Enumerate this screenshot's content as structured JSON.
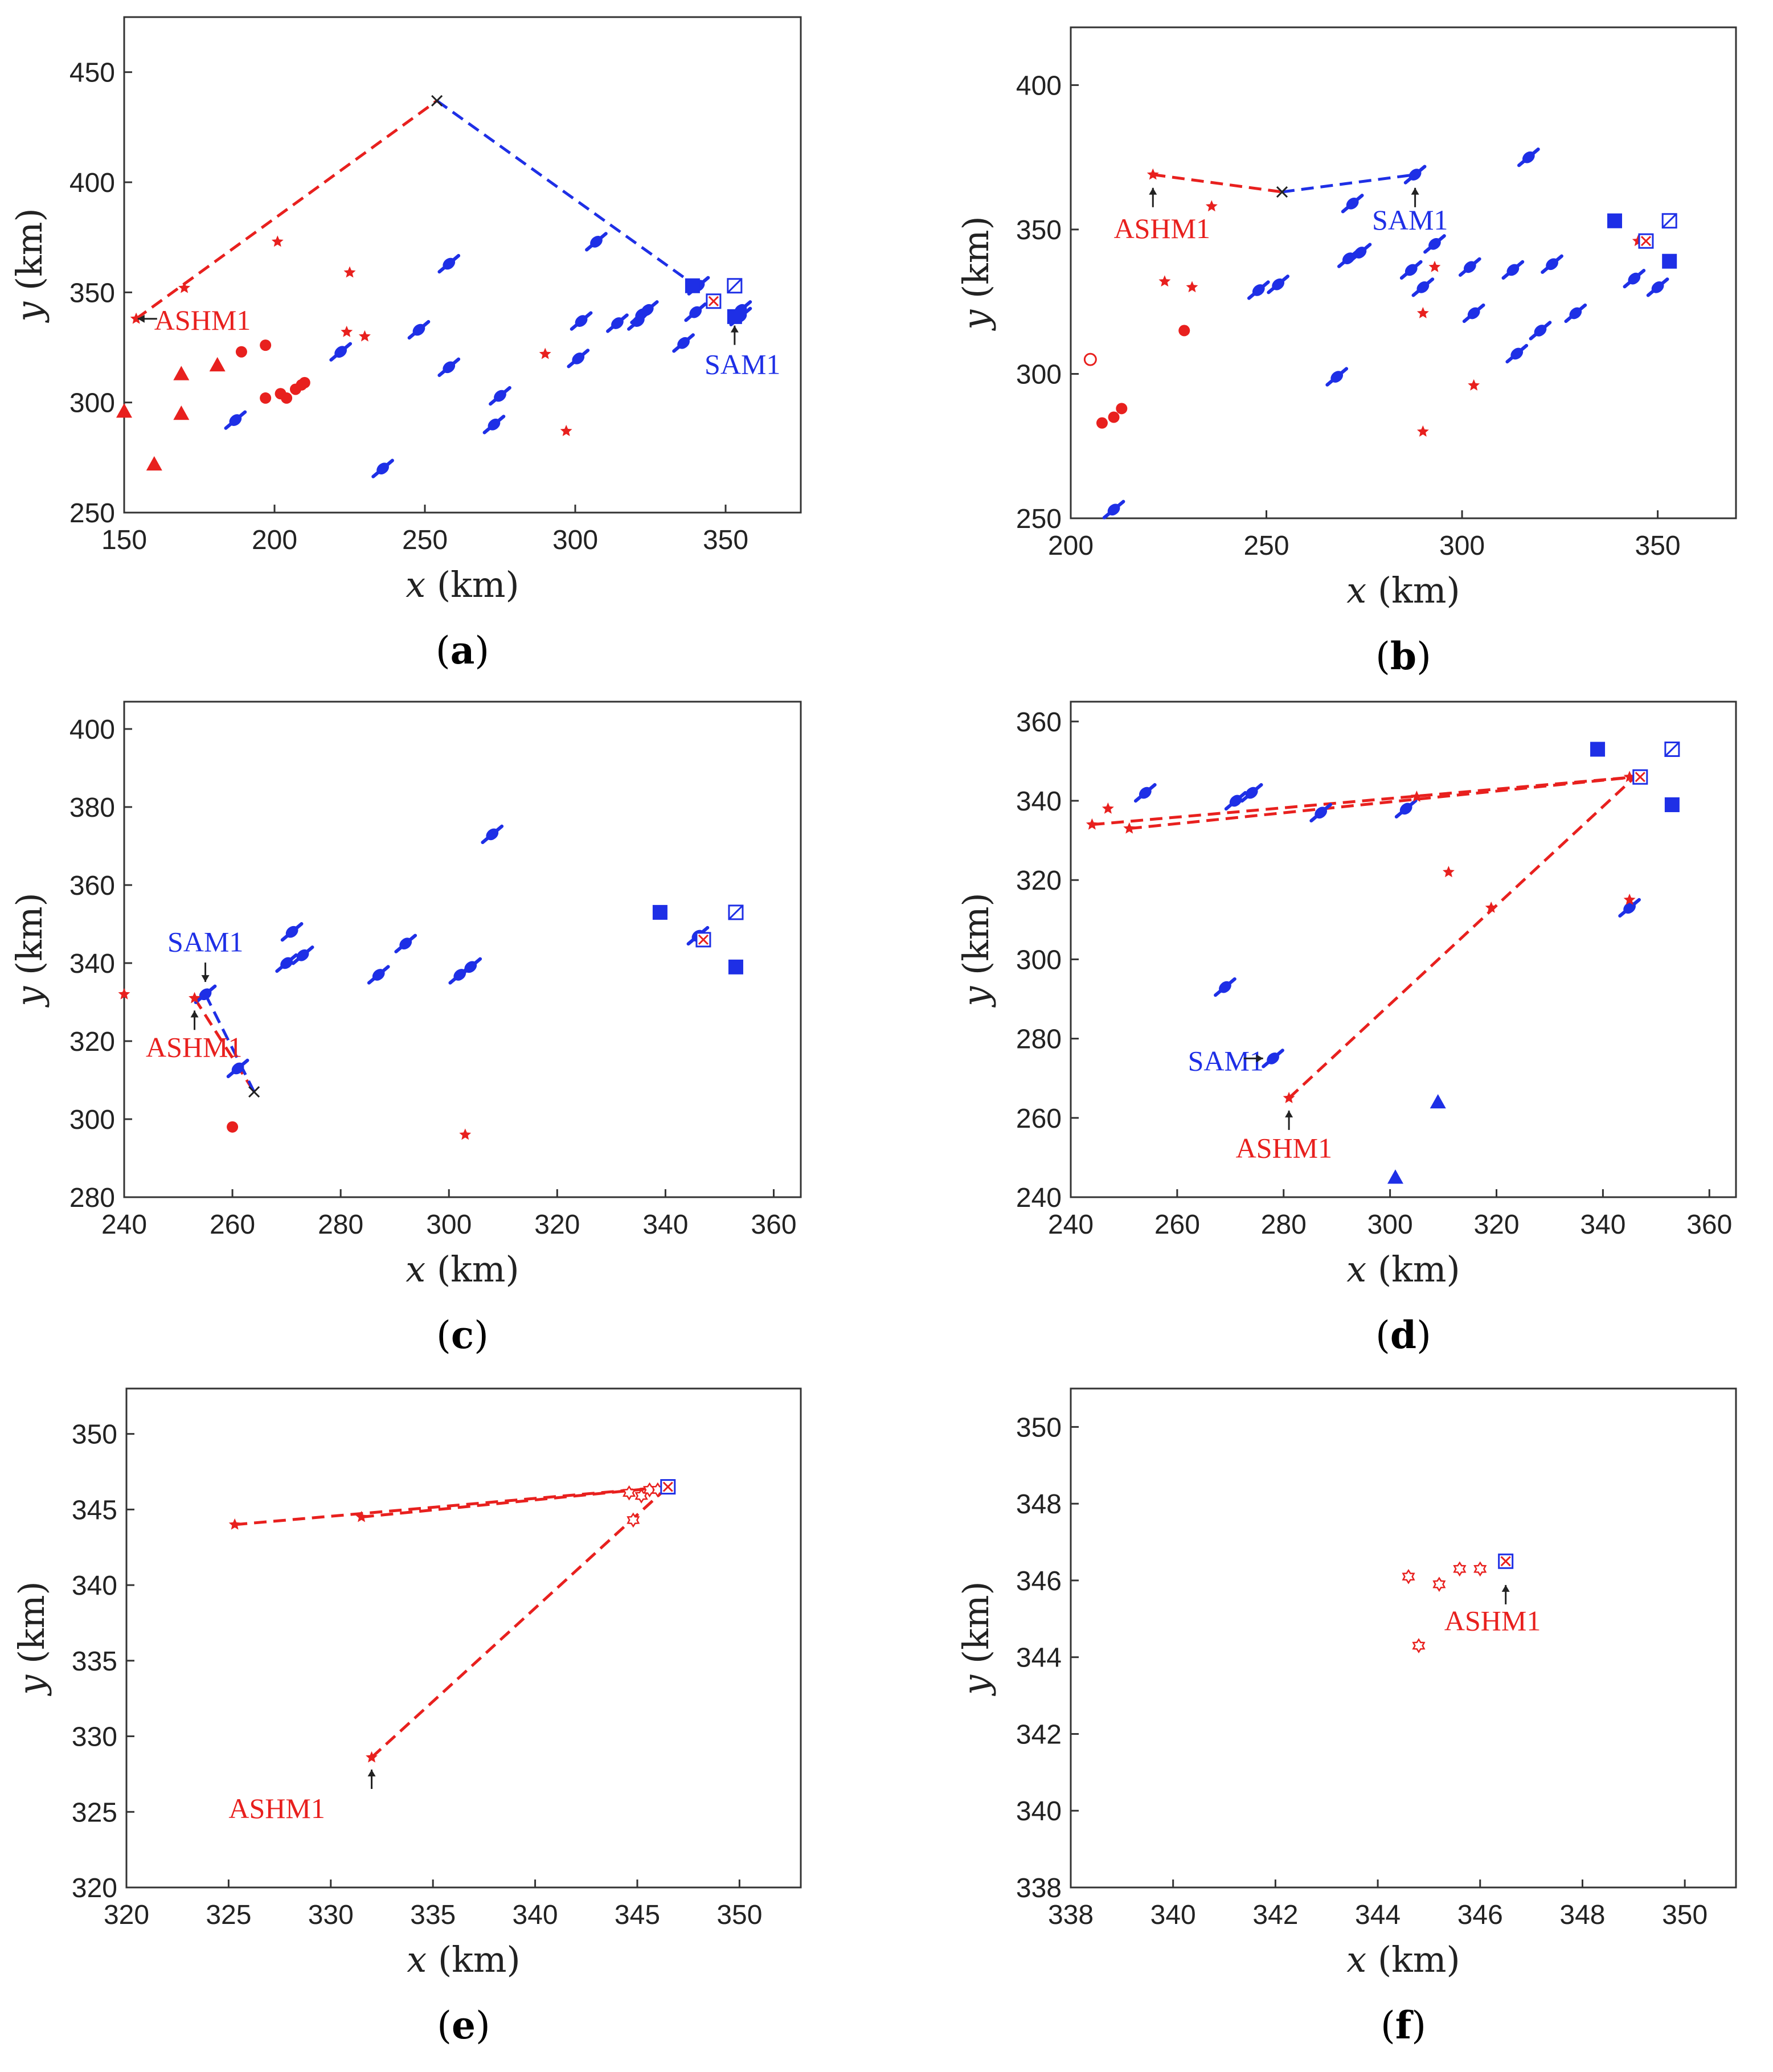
{
  "colors": {
    "red": "#e8201e",
    "blue": "#1e2fe6",
    "black": "#222222"
  },
  "chart_data": [
    {
      "panel": "a",
      "type": "scatter",
      "xlabel": "x",
      "ylabel": "y",
      "unit": "(km)",
      "xlim": [
        150,
        375
      ],
      "ylim": [
        250,
        475
      ],
      "xticks": [
        150,
        200,
        250,
        300,
        350
      ],
      "yticks": [
        250,
        300,
        350,
        400,
        450
      ],
      "lines": [
        {
          "color": "red",
          "pts": [
            [
              154,
              338
            ],
            [
              254,
              437
            ]
          ]
        },
        {
          "color": "blue",
          "pts": [
            [
              254,
              437
            ],
            [
              340,
              353
            ]
          ]
        }
      ],
      "crosses": [
        [
          254,
          437
        ]
      ],
      "red_stars": [
        [
          154,
          338
        ],
        [
          170,
          352
        ],
        [
          201,
          373
        ],
        [
          225,
          359
        ],
        [
          224,
          332
        ],
        [
          230,
          330
        ],
        [
          290,
          322
        ],
        [
          297,
          287
        ]
      ],
      "red_dots": [
        [
          189,
          323
        ],
        [
          197,
          326
        ],
        [
          197,
          302
        ],
        [
          202,
          304
        ],
        [
          204,
          302
        ],
        [
          207,
          306
        ],
        [
          209,
          308
        ],
        [
          210,
          309
        ]
      ],
      "red_triangles": [
        [
          150,
          296
        ],
        [
          160,
          272
        ],
        [
          169,
          295
        ],
        [
          169,
          313
        ],
        [
          181,
          317
        ]
      ],
      "blue_aircraft": [
        [
          187,
          292
        ],
        [
          222,
          323
        ],
        [
          236,
          270
        ],
        [
          248,
          333
        ],
        [
          258,
          316
        ],
        [
          258,
          363
        ],
        [
          273,
          290
        ],
        [
          275,
          303
        ],
        [
          301,
          320
        ],
        [
          302,
          337
        ],
        [
          307,
          373
        ],
        [
          314,
          336
        ],
        [
          321,
          337
        ],
        [
          322,
          340
        ],
        [
          324,
          342
        ],
        [
          336,
          327
        ],
        [
          340,
          341
        ],
        [
          341,
          353
        ],
        [
          355,
          339
        ],
        [
          355,
          342
        ]
      ],
      "blue_squares_filled": [
        [
          339,
          353
        ],
        [
          353,
          339
        ]
      ],
      "blue_squares_hatched": [
        [
          353,
          353
        ]
      ],
      "target": [
        [
          346,
          346
        ]
      ],
      "annotations": [
        {
          "text": "ASHM1",
          "color": "red",
          "x": 160,
          "y": 333,
          "arrow": "left",
          "ax": 153,
          "ay": 338
        },
        {
          "text": "SAM1",
          "color": "blue",
          "x": 343,
          "y": 313,
          "arrow": "up",
          "ax": 353,
          "ay": 337
        }
      ]
    },
    {
      "panel": "b",
      "type": "scatter",
      "xlabel": "x",
      "ylabel": "y",
      "unit": "(km)",
      "xlim": [
        200,
        370
      ],
      "ylim": [
        250,
        420
      ],
      "xticks": [
        200,
        250,
        300,
        350
      ],
      "yticks": [
        250,
        300,
        350,
        400
      ],
      "lines": [
        {
          "color": "red",
          "pts": [
            [
              221,
              369
            ],
            [
              254,
              363
            ]
          ]
        },
        {
          "color": "blue",
          "pts": [
            [
              254,
              363
            ],
            [
              288,
              369
            ]
          ]
        }
      ],
      "crosses": [
        [
          254,
          363
        ]
      ],
      "red_stars": [
        [
          221,
          369
        ],
        [
          236,
          358
        ],
        [
          224,
          332
        ],
        [
          231,
          330
        ],
        [
          290,
          321
        ],
        [
          293,
          337
        ],
        [
          290,
          280
        ],
        [
          303,
          296
        ],
        [
          345,
          346
        ]
      ],
      "red_dots": [
        [
          208,
          283
        ],
        [
          211,
          285
        ],
        [
          213,
          288
        ],
        [
          229,
          315
        ]
      ],
      "red_circles_open": [
        [
          205,
          305
        ]
      ],
      "blue_aircraft": [
        [
          211,
          253
        ],
        [
          248,
          329
        ],
        [
          253,
          331
        ],
        [
          268,
          299
        ],
        [
          271,
          340
        ],
        [
          272,
          359
        ],
        [
          274,
          342
        ],
        [
          287,
          336
        ],
        [
          288,
          369
        ],
        [
          290,
          330
        ],
        [
          293,
          345
        ],
        [
          302,
          337
        ],
        [
          303,
          321
        ],
        [
          313,
          336
        ],
        [
          314,
          307
        ],
        [
          317,
          375
        ],
        [
          320,
          315
        ],
        [
          323,
          338
        ],
        [
          329,
          321
        ],
        [
          344,
          333
        ],
        [
          350,
          330
        ]
      ],
      "blue_squares_filled": [
        [
          339,
          353
        ],
        [
          353,
          339
        ]
      ],
      "blue_squares_hatched": [
        [
          353,
          353
        ]
      ],
      "target": [
        [
          347,
          346
        ]
      ],
      "annotations": [
        {
          "text": "ASHM1",
          "color": "red",
          "x": 211,
          "y": 347,
          "arrow": "up",
          "ax": 221,
          "ay": 366
        },
        {
          "text": "SAM1",
          "color": "blue",
          "x": 277,
          "y": 350,
          "arrow": "up",
          "ax": 288,
          "ay": 366
        }
      ]
    },
    {
      "panel": "c",
      "type": "scatter",
      "xlabel": "x",
      "ylabel": "y",
      "unit": "(km)",
      "xlim": [
        240,
        365
      ],
      "ylim": [
        280,
        407
      ],
      "xticks": [
        240,
        260,
        280,
        300,
        320,
        340,
        360
      ],
      "yticks": [
        280,
        300,
        320,
        340,
        360,
        380,
        400
      ],
      "lines": [
        {
          "color": "red",
          "pts": [
            [
              253,
              331
            ],
            [
              264,
              307
            ]
          ]
        },
        {
          "color": "blue",
          "pts": [
            [
              255,
              332
            ],
            [
              264,
              307
            ]
          ]
        }
      ],
      "crosses": [
        [
          264,
          307
        ]
      ],
      "red_stars": [
        [
          240,
          332
        ],
        [
          253,
          331
        ],
        [
          303,
          296
        ]
      ],
      "red_dots": [
        [
          260,
          298
        ]
      ],
      "blue_aircraft": [
        [
          255,
          332
        ],
        [
          261,
          313
        ],
        [
          270,
          340
        ],
        [
          271,
          348
        ],
        [
          273,
          342
        ],
        [
          287,
          337
        ],
        [
          292,
          345
        ],
        [
          302,
          337
        ],
        [
          304,
          339
        ],
        [
          308,
          373
        ],
        [
          346,
          347
        ]
      ],
      "blue_squares_filled": [
        [
          339,
          353
        ],
        [
          353,
          339
        ]
      ],
      "blue_squares_hatched": [
        [
          353,
          353
        ]
      ],
      "target": [
        [
          347,
          346
        ]
      ],
      "annotations": [
        {
          "text": "SAM1",
          "color": "blue",
          "x": 248,
          "y": 343,
          "arrow": "down",
          "ax": 255,
          "ay": 334
        },
        {
          "text": "ASHM1",
          "color": "red",
          "x": 244,
          "y": 316,
          "arrow": "up",
          "ax": 253,
          "ay": 329
        }
      ]
    },
    {
      "panel": "d",
      "type": "scatter",
      "xlabel": "x",
      "ylabel": "y",
      "unit": "(km)",
      "xlim": [
        240,
        365
      ],
      "ylim": [
        240,
        365
      ],
      "xticks": [
        240,
        260,
        280,
        300,
        320,
        340,
        360
      ],
      "yticks": [
        240,
        260,
        280,
        300,
        320,
        340,
        360
      ],
      "lines": [
        {
          "color": "red",
          "pts": [
            [
              244,
              334
            ],
            [
              346,
              346
            ]
          ]
        },
        {
          "color": "red",
          "pts": [
            [
              251,
              333
            ],
            [
              346,
              346
            ]
          ]
        },
        {
          "color": "red",
          "pts": [
            [
              281,
              265
            ],
            [
              346,
              346
            ]
          ]
        }
      ],
      "crosses": [],
      "red_stars": [
        [
          244,
          334
        ],
        [
          247,
          338
        ],
        [
          251,
          333
        ],
        [
          305,
          341
        ],
        [
          311,
          322
        ],
        [
          319,
          313
        ],
        [
          345,
          346
        ],
        [
          345,
          315
        ],
        [
          281,
          265
        ]
      ],
      "blue_aircraft": [
        [
          254,
          342
        ],
        [
          269,
          293
        ],
        [
          271,
          340
        ],
        [
          274,
          342
        ],
        [
          278,
          275
        ],
        [
          287,
          337
        ],
        [
          303,
          338
        ],
        [
          345,
          313
        ]
      ],
      "blue_triangles": [
        [
          301,
          245
        ],
        [
          309,
          264
        ]
      ],
      "blue_squares_filled": [
        [
          339,
          353
        ],
        [
          353,
          339
        ]
      ],
      "blue_squares_hatched": [
        [
          353,
          353
        ]
      ],
      "target": [
        [
          347,
          346
        ]
      ],
      "annotations": [
        {
          "text": "SAM1",
          "color": "blue",
          "x": 262,
          "y": 272,
          "arrow": "right",
          "ax": 277,
          "ay": 275
        },
        {
          "text": "ASHM1",
          "color": "red",
          "x": 271,
          "y": 250,
          "arrow": "up",
          "ax": 281,
          "ay": 263
        }
      ]
    },
    {
      "panel": "e",
      "type": "scatter",
      "xlabel": "x",
      "ylabel": "y",
      "unit": "(km)",
      "xlim": [
        320,
        353
      ],
      "ylim": [
        320,
        353
      ],
      "xticks": [
        320,
        325,
        330,
        335,
        340,
        345,
        350
      ],
      "yticks": [
        320,
        325,
        330,
        335,
        340,
        345,
        350
      ],
      "lines": [
        {
          "color": "red",
          "pts": [
            [
              325.3,
              344
            ],
            [
              346.5,
              346.5
            ]
          ]
        },
        {
          "color": "red",
          "pts": [
            [
              331.5,
              344.5
            ],
            [
              346.5,
              346.5
            ]
          ]
        },
        {
          "color": "red",
          "pts": [
            [
              332,
              328.6
            ],
            [
              346.5,
              346.5
            ]
          ]
        }
      ],
      "crosses": [],
      "red_stars": [
        [
          325.3,
          344
        ],
        [
          331.5,
          344.5
        ],
        [
          332,
          328.6
        ]
      ],
      "red_stars_open": [
        [
          344.6,
          346.1
        ],
        [
          344.8,
          344.3
        ],
        [
          345.2,
          345.9
        ],
        [
          345.6,
          346.3
        ],
        [
          346.0,
          346.3
        ]
      ],
      "target": [
        [
          346.5,
          346.5
        ]
      ],
      "annotations": [
        {
          "text": "ASHM1",
          "color": "red",
          "x": 325,
          "y": 324.6,
          "arrow": "up",
          "ax": 332,
          "ay": 328.1
        }
      ]
    },
    {
      "panel": "f",
      "type": "scatter",
      "xlabel": "x",
      "ylabel": "y",
      "unit": "(km)",
      "xlim": [
        338,
        351
      ],
      "ylim": [
        338,
        351
      ],
      "xticks": [
        338,
        340,
        342,
        344,
        346,
        348,
        350
      ],
      "yticks": [
        338,
        340,
        342,
        344,
        346,
        348,
        350
      ],
      "lines": [],
      "crosses": [],
      "red_stars_open": [
        [
          344.6,
          346.1
        ],
        [
          344.8,
          344.3
        ],
        [
          345.2,
          345.9
        ],
        [
          345.6,
          346.3
        ],
        [
          346.0,
          346.3
        ]
      ],
      "target": [
        [
          346.5,
          346.5
        ]
      ],
      "annotations": [
        {
          "text": "ASHM1",
          "color": "red",
          "x": 345.3,
          "y": 344.7,
          "arrow": "up",
          "ax": 346.5,
          "ay": 346.0
        }
      ]
    }
  ]
}
